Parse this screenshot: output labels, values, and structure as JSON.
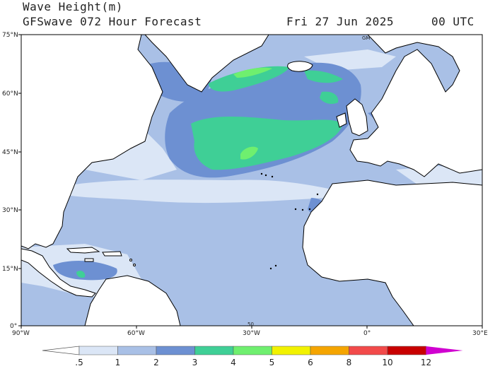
{
  "header": {
    "title": "Wave Height(m)",
    "subtitle": "GFSwave 072 Hour Forecast",
    "date": "Fri 27 Jun 2025",
    "time": "00 UTC"
  },
  "axes": {
    "lat_labels": [
      "75°N",
      "60°N",
      "45°N",
      "30°N",
      "15°N",
      "0°"
    ],
    "lon_labels": [
      "90°W",
      "60°W",
      "30°W",
      "0°",
      "30°E"
    ],
    "annotations": [
      "GM",
      "50"
    ]
  },
  "colorbar": {
    "labels": [
      ".5",
      "1",
      "2",
      "3",
      "4",
      "5",
      "6",
      "8",
      "10",
      "12"
    ],
    "colors": [
      "#ffffff",
      "#dbe6f6",
      "#a9c0e6",
      "#6d90d2",
      "#3fcf96",
      "#6fef6f",
      "#f2f200",
      "#f5a500",
      "#f24a4a",
      "#c80000",
      "#d000d0"
    ]
  },
  "map": {
    "ocean_colors": {
      "calm": "#dbe6f6",
      "light": "#a9c0e6",
      "moderate": "#6d90d2",
      "rough": "#3fcf96",
      "very_rough": "#6fef6f"
    },
    "land_color": "#ffffff",
    "coast_color": "#000000"
  }
}
